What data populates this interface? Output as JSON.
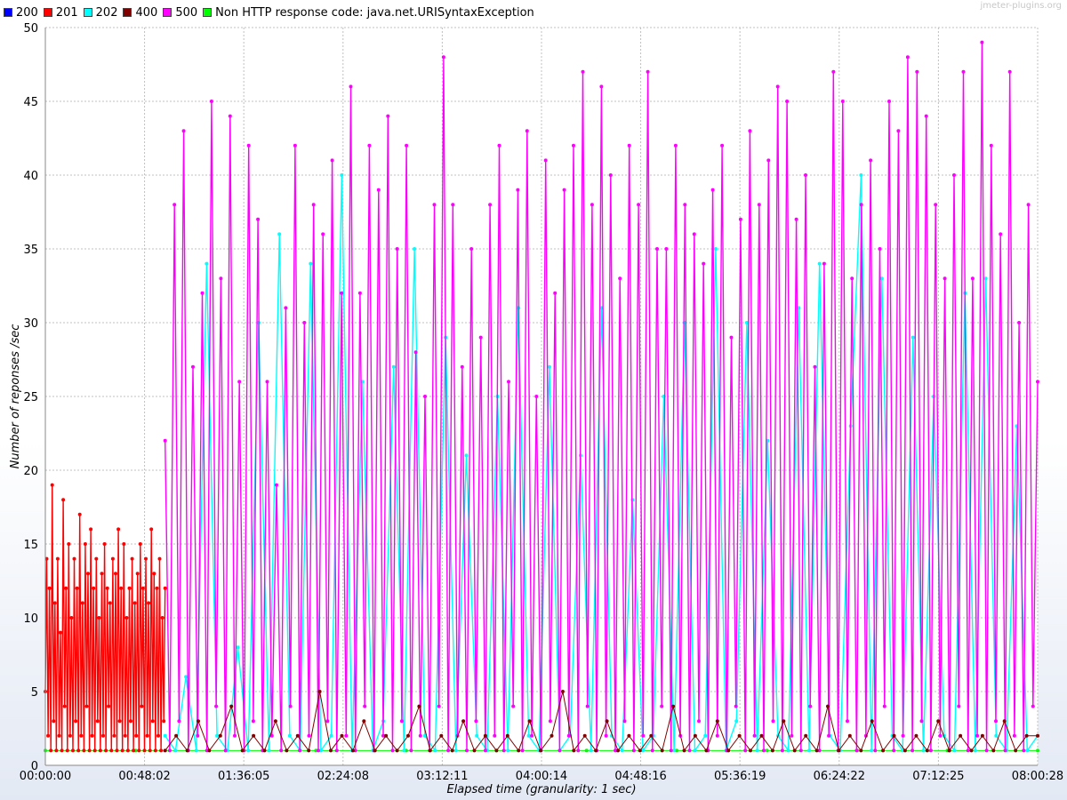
{
  "watermark": "jmeter-plugins.org",
  "legend": [
    {
      "label": "200",
      "color": "#0000ff"
    },
    {
      "label": "201",
      "color": "#ff0000"
    },
    {
      "label": "202",
      "color": "#00ffff"
    },
    {
      "label": "400",
      "color": "#800000"
    },
    {
      "label": "500",
      "color": "#ff00ff"
    },
    {
      "label": "Non HTTP response code: java.net.URISyntaxException",
      "color": "#00ff00"
    }
  ],
  "chart_data": {
    "type": "line",
    "title": "",
    "xlabel": "Elapsed time (granularity: 1 sec)",
    "ylabel": "Number of reponses /sec",
    "ylim": [
      0,
      50
    ],
    "xlim_seconds": [
      0,
      28828
    ],
    "y_ticks": [
      0,
      5,
      10,
      15,
      20,
      25,
      30,
      35,
      40,
      45,
      50
    ],
    "x_tick_labels": [
      "00:00:00",
      "00:48:02",
      "01:36:05",
      "02:24:08",
      "03:12:11",
      "04:00:14",
      "04:48:16",
      "05:36:19",
      "06:24:22",
      "07:12:25",
      "08:00:28"
    ],
    "grid": true,
    "legend_position": "top-left",
    "series": [
      {
        "name": "201",
        "color": "#ff0000",
        "x_range": [
          "00:00:00",
          "00:58:00"
        ],
        "values": [
          5,
          14,
          2,
          12,
          1,
          19,
          3,
          11,
          1,
          14,
          2,
          9,
          1,
          18,
          4,
          12,
          1,
          15,
          2,
          10,
          1,
          14,
          3,
          12,
          1,
          17,
          2,
          11,
          1,
          15,
          4,
          13,
          1,
          16,
          2,
          12,
          1,
          14,
          3,
          10,
          1,
          13,
          2,
          15,
          1,
          12,
          4,
          11,
          1,
          14,
          2,
          13,
          1,
          16,
          3,
          12,
          1,
          15,
          2,
          10,
          1,
          12,
          3,
          14,
          1,
          11,
          2,
          13,
          1,
          15,
          4,
          12,
          1,
          14,
          2,
          11,
          1,
          16,
          3,
          13,
          1,
          12,
          2,
          14,
          1,
          10,
          3,
          12
        ]
      },
      {
        "name": "500",
        "color": "#ff00ff",
        "x_range": [
          "00:58:00",
          "08:00:28"
        ],
        "values": [
          22,
          1,
          38,
          3,
          43,
          1,
          27,
          2,
          32,
          1,
          45,
          4,
          33,
          1,
          44,
          2,
          26,
          1,
          42,
          3,
          37,
          1,
          26,
          2,
          19,
          1,
          31,
          4,
          42,
          1,
          30,
          2,
          38,
          1,
          36,
          3,
          41,
          1,
          32,
          2,
          46,
          1,
          32,
          4,
          42,
          1,
          39,
          2,
          44,
          1,
          35,
          3,
          42,
          1,
          28,
          2,
          25,
          1,
          38,
          4,
          48,
          1,
          38,
          2,
          27,
          1,
          35,
          3,
          29,
          1,
          38,
          2,
          42,
          1,
          26,
          4,
          39,
          1,
          43,
          2,
          25,
          1,
          41,
          3,
          32,
          1,
          39,
          2,
          42,
          1,
          47,
          4,
          38,
          1,
          46,
          2,
          40,
          1,
          33,
          3,
          42,
          1,
          38,
          2,
          47,
          1,
          35,
          4,
          35,
          1,
          42,
          2,
          38,
          1,
          36,
          3,
          34,
          1,
          39,
          2,
          42,
          1,
          29,
          4,
          37,
          1,
          43,
          2,
          38,
          1,
          41,
          3,
          46,
          1,
          45,
          2,
          37,
          1,
          40,
          4,
          27,
          1,
          34,
          2,
          47,
          1,
          45,
          3,
          33,
          1,
          38,
          2,
          41,
          1,
          35,
          4,
          45,
          1,
          43,
          2,
          48,
          1,
          47,
          3,
          44,
          1,
          38,
          2,
          33,
          1,
          40,
          4,
          47,
          1,
          33,
          2,
          49,
          1,
          42,
          3,
          36,
          1,
          47,
          2,
          30,
          1,
          38,
          4,
          26
        ]
      },
      {
        "name": "202",
        "color": "#00ffff",
        "x_range": [
          "00:58:00",
          "08:00:28"
        ],
        "values": [
          2,
          1,
          6,
          1,
          34,
          2,
          1,
          8,
          1,
          30,
          1,
          36,
          2,
          1,
          34,
          1,
          2,
          40,
          1,
          26,
          1,
          3,
          27,
          1,
          35,
          2,
          1,
          29,
          1,
          21,
          2,
          1,
          25,
          1,
          31,
          2,
          1,
          27,
          1,
          2,
          21,
          1,
          31,
          2,
          1,
          18,
          1,
          2,
          25,
          1,
          30,
          1,
          2,
          35,
          1,
          3,
          30,
          1,
          22,
          2,
          1,
          31,
          1,
          34,
          2,
          1,
          23,
          40,
          1,
          33,
          2,
          1,
          29,
          1,
          25,
          2,
          1,
          32,
          1,
          33,
          2,
          1,
          23,
          1,
          2
        ]
      },
      {
        "name": "400",
        "color": "#800000",
        "x_range": [
          "00:58:00",
          "08:00:28"
        ],
        "values": [
          1,
          2,
          1,
          3,
          1,
          2,
          4,
          1,
          2,
          1,
          3,
          1,
          2,
          1,
          5,
          1,
          2,
          1,
          3,
          1,
          2,
          1,
          2,
          4,
          1,
          2,
          1,
          3,
          1,
          2,
          1,
          2,
          1,
          3,
          1,
          2,
          5,
          1,
          2,
          1,
          3,
          1,
          2,
          1,
          2,
          1,
          4,
          1,
          2,
          1,
          3,
          1,
          2,
          1,
          2,
          1,
          3,
          1,
          2,
          1,
          4,
          1,
          2,
          1,
          3,
          1,
          2,
          1,
          2,
          1,
          3,
          1,
          2,
          1,
          2,
          1,
          3,
          1,
          2,
          2
        ]
      },
      {
        "name": "Non HTTP response code: java.net.URISyntaxException",
        "color": "#00ff00",
        "x_range": [
          "00:00:00",
          "08:00:28"
        ],
        "values": [
          1,
          1,
          1,
          1,
          1,
          1,
          1,
          1,
          1,
          1,
          1,
          1
        ]
      }
    ]
  }
}
